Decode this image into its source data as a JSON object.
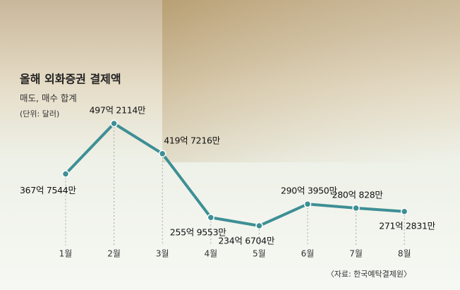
{
  "chart_data": {
    "type": "line",
    "title": "올해 외화증권 결제액",
    "subtitle": "매도, 매수 합계",
    "unit_note": "(단위: 달러)",
    "source": "〈자료: 한국예탁결제원〉",
    "categories": [
      "1월",
      "2월",
      "3월",
      "4월",
      "5월",
      "6월",
      "7월",
      "8월"
    ],
    "series": [
      {
        "color": "#3d8f95",
        "values": [
          36775440000,
          49721140000,
          41972160000,
          25595530000,
          23467040000,
          29039500000,
          28008280000,
          27128310000
        ],
        "value_labels": [
          "367억 7544만",
          "497억 2114만",
          "419억 7216만",
          "255억 9553만",
          "234억 6704만",
          "290억 3950만",
          "280억 828만",
          "271억 2831만"
        ]
      }
    ]
  }
}
